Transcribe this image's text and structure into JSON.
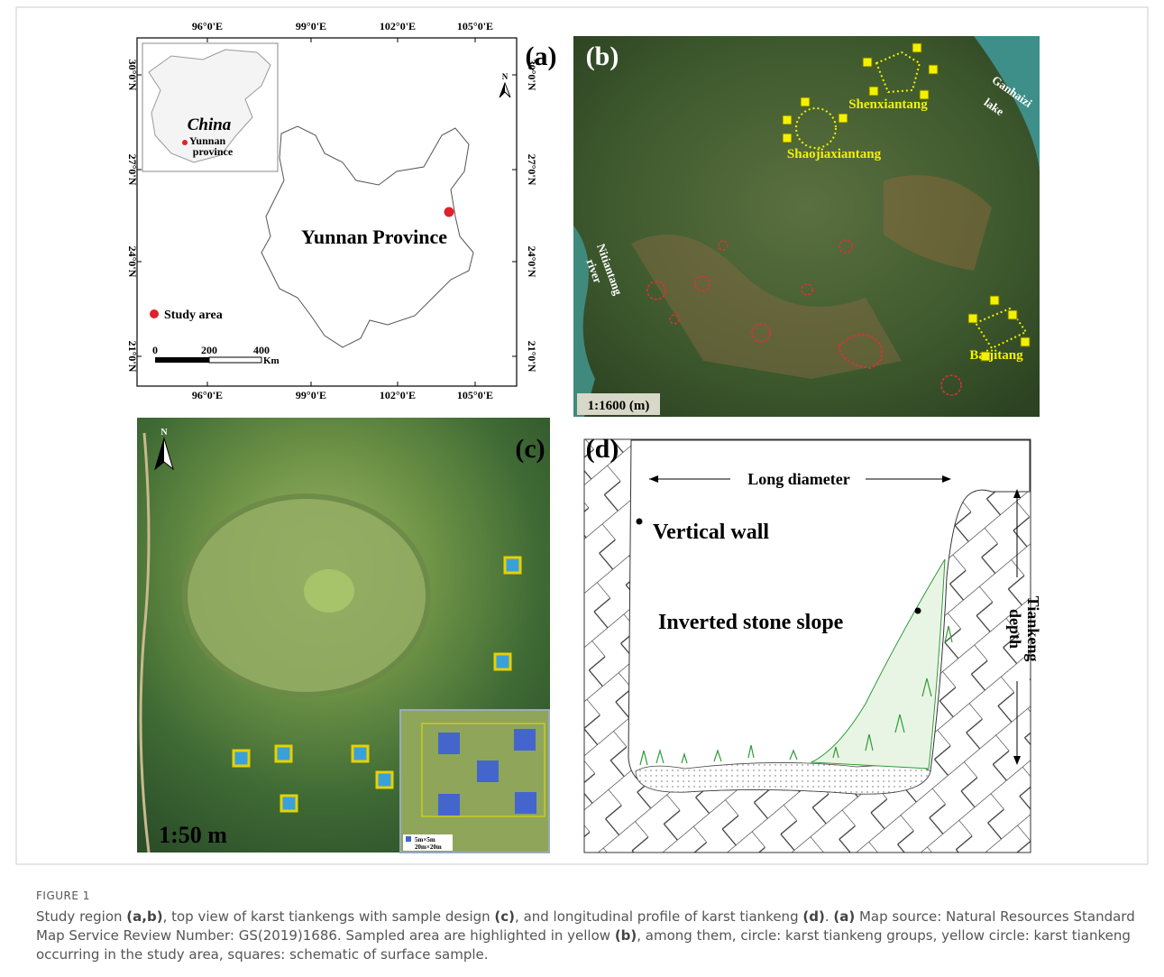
{
  "figure": {
    "panel_a": {
      "label": "(a)",
      "lon_ticks": [
        "96°0'E",
        "99°0'E",
        "102°0'E",
        "105°0'E"
      ],
      "lat_ticks": [
        "30°0'N",
        "27°0'N",
        "24°0'N",
        "21°0'N"
      ],
      "north": "N",
      "inset": {
        "title": "China",
        "region_lines": [
          "Yunnan",
          "province"
        ]
      },
      "map_label": "Yunnan Province",
      "legend": "Study area",
      "scale": {
        "ticks": [
          "0",
          "200",
          "400"
        ],
        "unit": "Km"
      }
    },
    "panel_b": {
      "label": "(b)",
      "sites": [
        "Shenxiantang",
        "Shaojiaxiantang",
        "Baijitang"
      ],
      "lake_lines": [
        "Ganhaizi",
        "lake"
      ],
      "river_lines": [
        "Nitiantang",
        "river"
      ],
      "scale": "1:1600 (m)"
    },
    "panel_c": {
      "label": "(c)",
      "north": "N",
      "scale": "1:50 m",
      "legend": [
        "5m×5m",
        "20m×20m"
      ]
    },
    "panel_d": {
      "label": "(d)",
      "long_diameter": "Long diameter",
      "vertical_wall": "Vertical wall",
      "slope": "Inverted stone slope",
      "depth_lines": [
        "Tiankeng",
        "depth"
      ]
    }
  },
  "caption": {
    "number": "FIGURE 1",
    "segments": [
      {
        "text": "Study region ",
        "bold": false
      },
      {
        "text": "(a,b)",
        "bold": true
      },
      {
        "text": ", top view of karst tiankengs with sample design ",
        "bold": false
      },
      {
        "text": "(c)",
        "bold": true
      },
      {
        "text": ", and longitudinal profile of karst tiankeng ",
        "bold": false
      },
      {
        "text": "(d)",
        "bold": true
      },
      {
        "text": ". ",
        "bold": false
      },
      {
        "text": "(a)",
        "bold": true
      },
      {
        "text": " Map source: Natural Resources Standard Map Service Review Number: GS(2019)1686. Sampled area are highlighted in yellow ",
        "bold": false
      },
      {
        "text": "(b)",
        "bold": true
      },
      {
        "text": ", among them, circle: karst tiankeng groups, yellow circle: karst tiankeng occurring in the study area, squares: schematic of surface sample.",
        "bold": false
      }
    ]
  }
}
